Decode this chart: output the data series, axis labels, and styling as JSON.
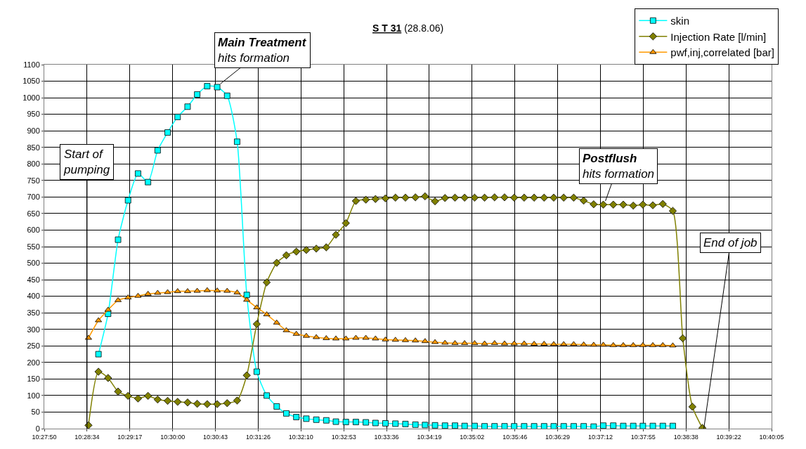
{
  "chart_data": {
    "type": "line",
    "title": "S T 31 (28.8.06)",
    "x": [
      10.4764,
      10.4792,
      10.4819,
      10.4847,
      10.4875,
      10.4903,
      10.4931,
      10.4958,
      10.4986,
      10.5014,
      10.5042,
      10.5069,
      10.5097,
      10.5125,
      10.5153,
      10.5181,
      10.5208,
      10.5236,
      10.5264,
      10.5292,
      10.5319,
      10.5347,
      10.5375,
      10.5403,
      10.5431,
      10.5458,
      10.5486,
      10.5514,
      10.5542,
      10.5569,
      10.5597,
      10.5625,
      10.5653,
      10.5681,
      10.5708,
      10.5736,
      10.5764,
      10.5792,
      10.5819,
      10.5847,
      10.5875,
      10.5903,
      10.5931,
      10.5958,
      10.5986,
      10.6014,
      10.6042,
      10.6069,
      10.6097,
      10.6125,
      10.6153,
      10.6181,
      10.6208,
      10.6236,
      10.6264,
      10.6292,
      10.6319,
      10.6347,
      10.6375,
      10.6403,
      10.6431,
      10.6458,
      10.6486
    ],
    "series": [
      {
        "name": "skin",
        "color": "#00ffff",
        "marker": "square",
        "values": [
          null,
          225,
          347,
          571,
          690,
          771,
          745,
          841,
          895,
          942,
          973,
          1010,
          1035,
          1032,
          1006,
          867,
          404,
          172,
          100,
          67,
          46,
          35,
          30,
          27,
          25,
          21,
          20,
          20,
          19,
          17,
          16,
          15,
          14,
          12,
          11,
          10,
          9,
          9,
          8,
          8,
          7,
          7,
          7,
          7,
          7,
          7,
          7,
          7,
          7,
          7,
          7,
          6,
          9,
          9,
          8,
          8,
          8,
          8,
          8,
          8,
          null,
          null,
          null
        ]
      },
      {
        "name": "Injection Rate [l/min]",
        "color": "#808000",
        "marker": "diamond",
        "values": [
          10,
          172,
          153,
          112,
          99,
          91,
          99,
          88,
          84,
          81,
          79,
          75,
          74,
          74,
          77,
          85,
          161,
          316,
          442,
          501,
          524,
          535,
          540,
          544,
          548,
          586,
          621,
          688,
          692,
          694,
          696,
          698,
          698,
          699,
          702,
          687,
          697,
          698,
          698,
          698,
          698,
          699,
          699,
          698,
          698,
          698,
          698,
          698,
          698,
          698,
          689,
          678,
          677,
          677,
          677,
          674,
          677,
          675,
          679,
          658,
          273,
          66,
          2
        ]
      },
      {
        "name": "pwf,inj,correlated [bar]",
        "color": "#ff9900",
        "marker": "triangle",
        "values": [
          274,
          327,
          359,
          388,
          396,
          401,
          407,
          410,
          412,
          415,
          415,
          416,
          418,
          417,
          416,
          411,
          389,
          366,
          345,
          320,
          297,
          286,
          280,
          276,
          273,
          272,
          272,
          274,
          274,
          272,
          269,
          268,
          267,
          266,
          264,
          261,
          259,
          258,
          258,
          258,
          257,
          258,
          257,
          257,
          257,
          256,
          256,
          255,
          255,
          255,
          254,
          253,
          253,
          252,
          252,
          252,
          252,
          252,
          252,
          251,
          null,
          null,
          null
        ]
      }
    ],
    "xlim": [
      10.464,
      10.668
    ],
    "xticks": [
      {
        "value": 10.464,
        "label": "10:27:50"
      },
      {
        "value": 10.476,
        "label": "10:28:34"
      },
      {
        "value": 10.488,
        "label": "10:29:17"
      },
      {
        "value": 10.5,
        "label": "10:30:00"
      },
      {
        "value": 10.512,
        "label": "10:30:43"
      },
      {
        "value": 10.524,
        "label": "10:31:26"
      },
      {
        "value": 10.536,
        "label": "10:32:10"
      },
      {
        "value": 10.548,
        "label": "10:32:53"
      },
      {
        "value": 10.56,
        "label": "10:33:36"
      },
      {
        "value": 10.572,
        "label": "10:34:19"
      },
      {
        "value": 10.584,
        "label": "10:35:02"
      },
      {
        "value": 10.596,
        "label": "10:35:46"
      },
      {
        "value": 10.608,
        "label": "10:36:29"
      },
      {
        "value": 10.62,
        "label": "10:37:12"
      },
      {
        "value": 10.632,
        "label": "10:37:55"
      },
      {
        "value": 10.644,
        "label": "10:38:38"
      },
      {
        "value": 10.656,
        "label": "10:39:22"
      },
      {
        "value": 10.668,
        "label": "10:40:05"
      }
    ],
    "ylim": [
      0,
      1100
    ],
    "yticks": [
      0,
      50,
      100,
      150,
      200,
      250,
      300,
      350,
      400,
      450,
      500,
      550,
      600,
      650,
      700,
      750,
      800,
      850,
      900,
      950,
      1000,
      1050,
      1100
    ],
    "annotations": [
      {
        "text": "Start of pumping",
        "x": 10.476,
        "y": 0
      },
      {
        "text": "Main Treatment\nhits formation",
        "x": 10.5134,
        "y": 1042
      },
      {
        "text": "Postflush\nhits formation",
        "x": 10.6214,
        "y": 688
      },
      {
        "text": "End of job",
        "x": 10.649,
        "y": 0
      }
    ],
    "grid": true,
    "legend": "top right",
    "line_style": "solid"
  }
}
